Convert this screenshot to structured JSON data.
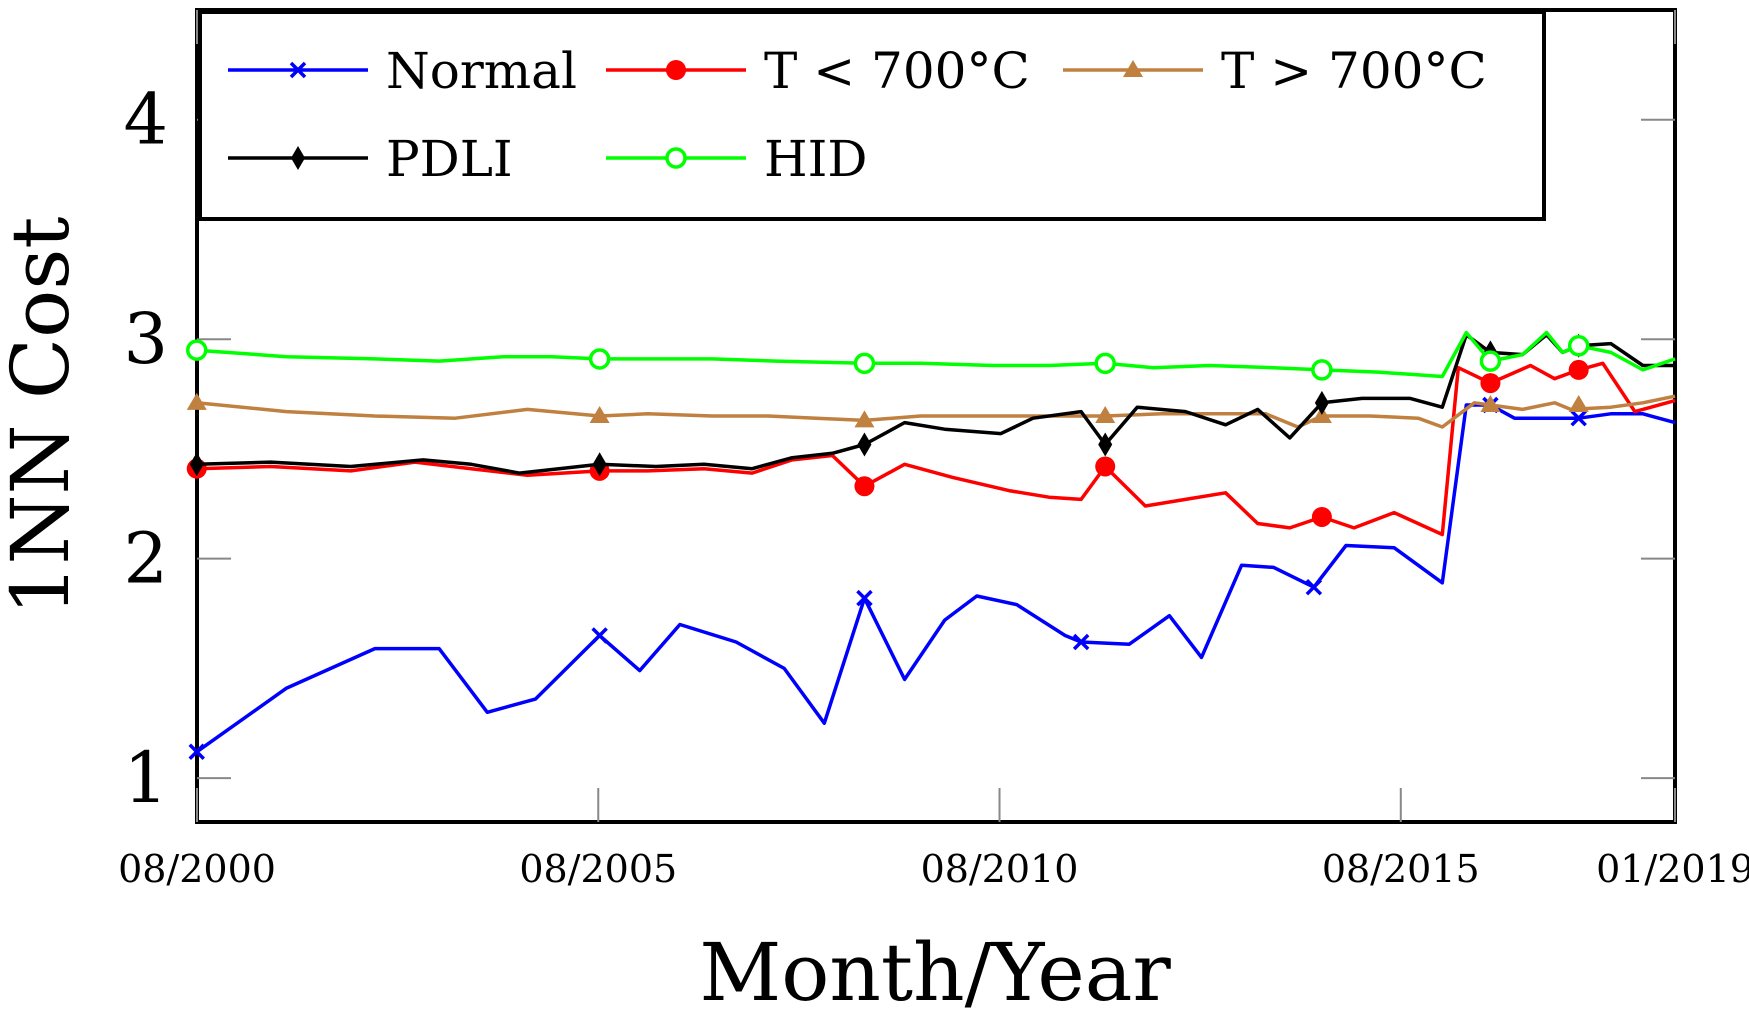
{
  "chart_data": {
    "type": "line",
    "title": "",
    "xlabel": "Month/Year",
    "ylabel": "1NN Cost",
    "xlim": [
      2000.583,
      2019.0
    ],
    "ylim": [
      0.8,
      4.5
    ],
    "grid": false,
    "legend_position": "top",
    "xticks": [
      {
        "value": 2000.583,
        "label": "08/2000"
      },
      {
        "value": 2005.583,
        "label": "08/2005"
      },
      {
        "value": 2010.583,
        "label": "08/2010"
      },
      {
        "value": 2015.583,
        "label": "08/2015"
      },
      {
        "value": 2019.0,
        "label": "01/2019"
      }
    ],
    "yticks": [
      {
        "value": 1,
        "label": "1"
      },
      {
        "value": 2,
        "label": "2"
      },
      {
        "value": 3,
        "label": "3"
      },
      {
        "value": 4,
        "label": "4"
      }
    ],
    "series": [
      {
        "name": "Normal",
        "color": "#0000ff",
        "marker": "x",
        "points": [
          [
            2000.58,
            1.12
          ],
          [
            2001.7,
            1.41
          ],
          [
            2002.8,
            1.59
          ],
          [
            2003.6,
            1.59
          ],
          [
            2004.2,
            1.3
          ],
          [
            2004.8,
            1.36
          ],
          [
            2005.6,
            1.65
          ],
          [
            2006.1,
            1.49
          ],
          [
            2006.6,
            1.7
          ],
          [
            2007.3,
            1.62
          ],
          [
            2007.9,
            1.5
          ],
          [
            2008.4,
            1.25
          ],
          [
            2008.9,
            1.82
          ],
          [
            2009.4,
            1.45
          ],
          [
            2009.9,
            1.72
          ],
          [
            2010.3,
            1.83
          ],
          [
            2010.8,
            1.79
          ],
          [
            2011.4,
            1.65
          ],
          [
            2011.6,
            1.62
          ],
          [
            2012.2,
            1.61
          ],
          [
            2012.7,
            1.74
          ],
          [
            2013.1,
            1.55
          ],
          [
            2013.6,
            1.97
          ],
          [
            2014.0,
            1.96
          ],
          [
            2014.5,
            1.87
          ],
          [
            2014.9,
            2.06
          ],
          [
            2015.5,
            2.05
          ],
          [
            2016.1,
            1.89
          ],
          [
            2016.4,
            2.7
          ],
          [
            2016.7,
            2.7
          ],
          [
            2017.0,
            2.64
          ],
          [
            2017.4,
            2.64
          ],
          [
            2017.8,
            2.64
          ],
          [
            2018.2,
            2.66
          ],
          [
            2018.6,
            2.66
          ],
          [
            2019.0,
            2.62
          ]
        ],
        "marker_points": [
          [
            2000.58,
            1.12
          ],
          [
            2005.6,
            1.65
          ],
          [
            2008.9,
            1.82
          ],
          [
            2011.6,
            1.62
          ],
          [
            2014.5,
            1.87
          ],
          [
            2016.7,
            2.7
          ],
          [
            2017.8,
            2.64
          ]
        ]
      },
      {
        "name": "T < 700°C",
        "color": "#ff0000",
        "marker": "circle-filled",
        "points": [
          [
            2000.58,
            2.41
          ],
          [
            2001.5,
            2.42
          ],
          [
            2002.5,
            2.4
          ],
          [
            2003.3,
            2.44
          ],
          [
            2004.0,
            2.41
          ],
          [
            2004.7,
            2.38
          ],
          [
            2005.6,
            2.4
          ],
          [
            2006.2,
            2.4
          ],
          [
            2006.9,
            2.41
          ],
          [
            2007.5,
            2.39
          ],
          [
            2008.0,
            2.45
          ],
          [
            2008.5,
            2.47
          ],
          [
            2008.9,
            2.33
          ],
          [
            2009.4,
            2.43
          ],
          [
            2010.0,
            2.37
          ],
          [
            2010.7,
            2.31
          ],
          [
            2011.2,
            2.28
          ],
          [
            2011.6,
            2.27
          ],
          [
            2011.9,
            2.42
          ],
          [
            2012.4,
            2.24
          ],
          [
            2012.9,
            2.27
          ],
          [
            2013.4,
            2.3
          ],
          [
            2013.8,
            2.16
          ],
          [
            2014.2,
            2.14
          ],
          [
            2014.6,
            2.19
          ],
          [
            2015.0,
            2.14
          ],
          [
            2015.5,
            2.21
          ],
          [
            2016.1,
            2.11
          ],
          [
            2016.3,
            2.87
          ],
          [
            2016.7,
            2.8
          ],
          [
            2017.2,
            2.88
          ],
          [
            2017.5,
            2.82
          ],
          [
            2017.8,
            2.86
          ],
          [
            2018.1,
            2.89
          ],
          [
            2018.5,
            2.67
          ],
          [
            2019.0,
            2.72
          ]
        ],
        "marker_points": [
          [
            2000.58,
            2.41
          ],
          [
            2005.6,
            2.4
          ],
          [
            2008.9,
            2.33
          ],
          [
            2011.9,
            2.42
          ],
          [
            2014.6,
            2.19
          ],
          [
            2016.7,
            2.8
          ],
          [
            2017.8,
            2.86
          ]
        ]
      },
      {
        "name": "T > 700°C",
        "color": "#bf8040",
        "marker": "triangle-filled",
        "points": [
          [
            2000.58,
            2.71
          ],
          [
            2001.7,
            2.67
          ],
          [
            2002.8,
            2.65
          ],
          [
            2003.8,
            2.64
          ],
          [
            2004.7,
            2.68
          ],
          [
            2005.6,
            2.65
          ],
          [
            2006.2,
            2.66
          ],
          [
            2007.0,
            2.65
          ],
          [
            2007.7,
            2.65
          ],
          [
            2008.3,
            2.64
          ],
          [
            2008.9,
            2.63
          ],
          [
            2009.6,
            2.65
          ],
          [
            2010.3,
            2.65
          ],
          [
            2011.0,
            2.65
          ],
          [
            2011.9,
            2.65
          ],
          [
            2012.6,
            2.66
          ],
          [
            2013.3,
            2.66
          ],
          [
            2013.9,
            2.66
          ],
          [
            2014.3,
            2.6
          ],
          [
            2014.6,
            2.65
          ],
          [
            2015.2,
            2.65
          ],
          [
            2015.8,
            2.64
          ],
          [
            2016.1,
            2.6
          ],
          [
            2016.5,
            2.71
          ],
          [
            2016.7,
            2.7
          ],
          [
            2017.1,
            2.68
          ],
          [
            2017.5,
            2.71
          ],
          [
            2017.7,
            2.68
          ],
          [
            2018.2,
            2.69
          ],
          [
            2018.6,
            2.71
          ],
          [
            2019.0,
            2.74
          ]
        ],
        "marker_points": [
          [
            2000.58,
            2.71
          ],
          [
            2005.6,
            2.65
          ],
          [
            2008.9,
            2.63
          ],
          [
            2011.9,
            2.65
          ],
          [
            2014.6,
            2.65
          ],
          [
            2016.7,
            2.7
          ],
          [
            2017.8,
            2.7
          ]
        ]
      },
      {
        "name": "PDLI",
        "color": "#000000",
        "marker": "diamond-filled",
        "points": [
          [
            2000.58,
            2.43
          ],
          [
            2001.5,
            2.44
          ],
          [
            2002.5,
            2.42
          ],
          [
            2003.4,
            2.45
          ],
          [
            2004.0,
            2.43
          ],
          [
            2004.6,
            2.39
          ],
          [
            2005.6,
            2.43
          ],
          [
            2006.3,
            2.42
          ],
          [
            2006.9,
            2.43
          ],
          [
            2007.5,
            2.41
          ],
          [
            2008.0,
            2.46
          ],
          [
            2008.5,
            2.48
          ],
          [
            2008.9,
            2.52
          ],
          [
            2009.4,
            2.62
          ],
          [
            2009.9,
            2.59
          ],
          [
            2010.6,
            2.57
          ],
          [
            2011.0,
            2.64
          ],
          [
            2011.6,
            2.67
          ],
          [
            2011.9,
            2.52
          ],
          [
            2012.3,
            2.69
          ],
          [
            2012.9,
            2.67
          ],
          [
            2013.4,
            2.61
          ],
          [
            2013.8,
            2.68
          ],
          [
            2014.2,
            2.55
          ],
          [
            2014.6,
            2.71
          ],
          [
            2015.1,
            2.73
          ],
          [
            2015.7,
            2.73
          ],
          [
            2016.1,
            2.69
          ],
          [
            2016.4,
            3.02
          ],
          [
            2016.7,
            2.94
          ],
          [
            2017.1,
            2.93
          ],
          [
            2017.4,
            3.02
          ],
          [
            2017.6,
            2.94
          ],
          [
            2017.8,
            2.97
          ],
          [
            2018.2,
            2.98
          ],
          [
            2018.6,
            2.88
          ],
          [
            2019.0,
            2.88
          ]
        ],
        "marker_points": [
          [
            2000.58,
            2.43
          ],
          [
            2005.6,
            2.43
          ],
          [
            2008.9,
            2.52
          ],
          [
            2011.9,
            2.52
          ],
          [
            2014.6,
            2.71
          ],
          [
            2016.7,
            2.94
          ],
          [
            2017.8,
            2.97
          ]
        ]
      },
      {
        "name": "HID",
        "color": "#00ff00",
        "marker": "circle-open",
        "points": [
          [
            2000.58,
            2.95
          ],
          [
            2001.7,
            2.92
          ],
          [
            2002.8,
            2.91
          ],
          [
            2003.6,
            2.9
          ],
          [
            2004.4,
            2.92
          ],
          [
            2005.0,
            2.92
          ],
          [
            2005.6,
            2.91
          ],
          [
            2006.3,
            2.91
          ],
          [
            2007.0,
            2.91
          ],
          [
            2007.8,
            2.9
          ],
          [
            2008.9,
            2.89
          ],
          [
            2009.6,
            2.89
          ],
          [
            2010.5,
            2.88
          ],
          [
            2011.2,
            2.88
          ],
          [
            2011.9,
            2.89
          ],
          [
            2012.5,
            2.87
          ],
          [
            2013.2,
            2.88
          ],
          [
            2014.0,
            2.87
          ],
          [
            2014.6,
            2.86
          ],
          [
            2015.3,
            2.85
          ],
          [
            2016.1,
            2.83
          ],
          [
            2016.4,
            3.03
          ],
          [
            2016.7,
            2.9
          ],
          [
            2017.1,
            2.93
          ],
          [
            2017.4,
            3.03
          ],
          [
            2017.6,
            2.94
          ],
          [
            2017.8,
            2.97
          ],
          [
            2018.2,
            2.94
          ],
          [
            2018.6,
            2.86
          ],
          [
            2019.0,
            2.91
          ]
        ],
        "marker_points": [
          [
            2000.58,
            2.95
          ],
          [
            2005.6,
            2.91
          ],
          [
            2008.9,
            2.89
          ],
          [
            2011.9,
            2.89
          ],
          [
            2014.6,
            2.86
          ],
          [
            2016.7,
            2.9
          ],
          [
            2017.8,
            2.97
          ]
        ]
      }
    ]
  }
}
